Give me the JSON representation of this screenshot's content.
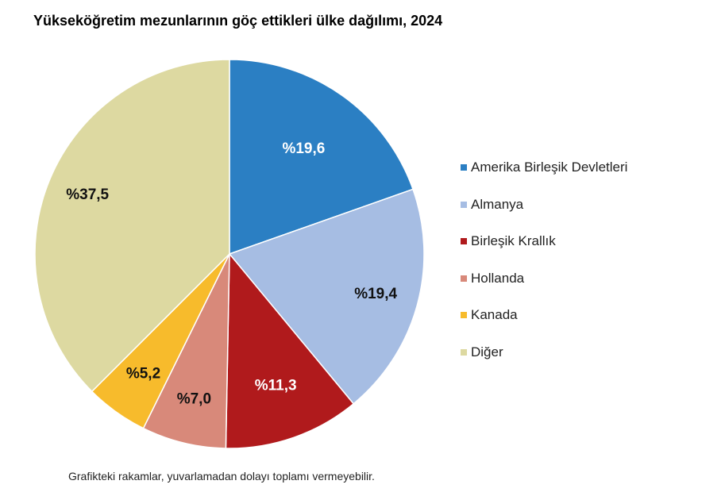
{
  "chart_data": {
    "type": "pie",
    "title": "Yükseköğretim mezunlarının göç ettikleri ülke dağılımı, 2024",
    "categories": [
      "Amerika Birleşik Devletleri",
      "Almanya",
      "Birleşik Krallık",
      "Hollanda",
      "Kanada",
      "Diğer"
    ],
    "values": [
      19.6,
      19.4,
      11.3,
      7.0,
      5.2,
      37.5
    ],
    "labels": [
      "%19,6",
      "%19,4",
      "%11,3",
      "%7,0",
      "%5,2",
      "%37,5"
    ],
    "colors": [
      "#2b7fc3",
      "#a6bde3",
      "#b01a1c",
      "#d8897a",
      "#f7bb2c",
      "#ddd9a1"
    ],
    "label_colors": [
      "#ffffff",
      "#111111",
      "#ffffff",
      "#111111",
      "#111111",
      "#111111"
    ],
    "start_angle": "12 o'clock",
    "direction": "clockwise",
    "legend_position": "right",
    "footnote": "Grafikteki rakamlar, yuvarlamadan dolayı toplamı vermeyebilir."
  }
}
